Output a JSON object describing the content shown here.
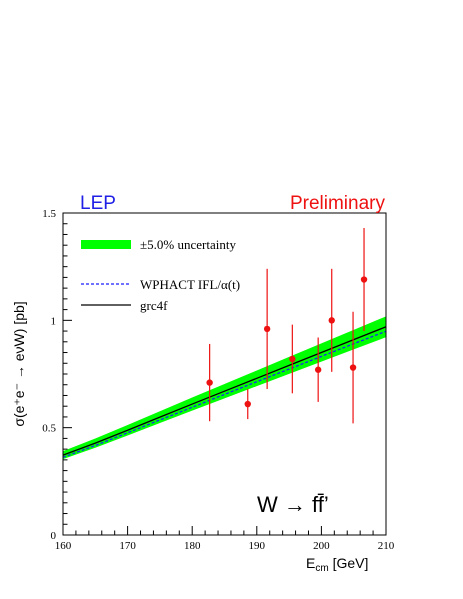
{
  "chart_data": {
    "type": "line",
    "header_left": "LEP",
    "header_right": "Preliminary",
    "header_left_color": "#1f1fe6",
    "header_right_color": "#ee1111",
    "xlabel_main": "E",
    "xlabel_sub": "cm",
    "xlabel_unit": " [GeV]",
    "ylabel": "σ(e⁺e⁻ → eνW) [pb]",
    "annotation": "W → ff̄’",
    "xlim": [
      160,
      210
    ],
    "ylim": [
      0,
      1.5
    ],
    "x_ticks": [
      160,
      170,
      180,
      190,
      200,
      210
    ],
    "y_ticks": [
      0,
      0.5,
      1,
      1.5
    ],
    "x_tick_labels": [
      "160",
      "170",
      "180",
      "190",
      "200",
      "210"
    ],
    "y_tick_labels": [
      "0",
      "0.5",
      "1",
      "1.5"
    ],
    "legend": {
      "band_label": "±5.0% uncertainty",
      "dashed_label": "WPHACT IFL/α(t)",
      "solid_label": "grc4f"
    },
    "colors": {
      "band": "#00ff00",
      "dashed": "#1a1aff",
      "solid": "#000000",
      "points": "#ee1111"
    },
    "band_relative_uncertainty": 0.05,
    "series": [
      {
        "name": "grc4f",
        "style": "solid",
        "x": [
          160,
          165,
          170,
          175,
          180,
          185,
          190,
          195,
          200,
          205,
          210
        ],
        "y": [
          0.372,
          0.428,
          0.488,
          0.549,
          0.61,
          0.67,
          0.73,
          0.79,
          0.85,
          0.91,
          0.97
        ]
      },
      {
        "name": "WPHACT IFL/α(t)",
        "style": "dashed",
        "x": [
          160,
          165,
          170,
          175,
          180,
          185,
          190,
          195,
          200,
          205,
          210
        ],
        "y": [
          0.362,
          0.417,
          0.476,
          0.536,
          0.595,
          0.655,
          0.714,
          0.773,
          0.832,
          0.891,
          0.949
        ]
      },
      {
        "name": "data",
        "style": "points",
        "x": [
          182.7,
          188.6,
          191.6,
          195.5,
          199.5,
          201.6,
          204.9,
          206.6
        ],
        "y": [
          0.71,
          0.61,
          0.96,
          0.82,
          0.77,
          1.0,
          0.78,
          1.19
        ],
        "err": [
          0.18,
          0.07,
          0.28,
          0.16,
          0.15,
          0.24,
          0.26,
          0.24
        ]
      }
    ]
  }
}
